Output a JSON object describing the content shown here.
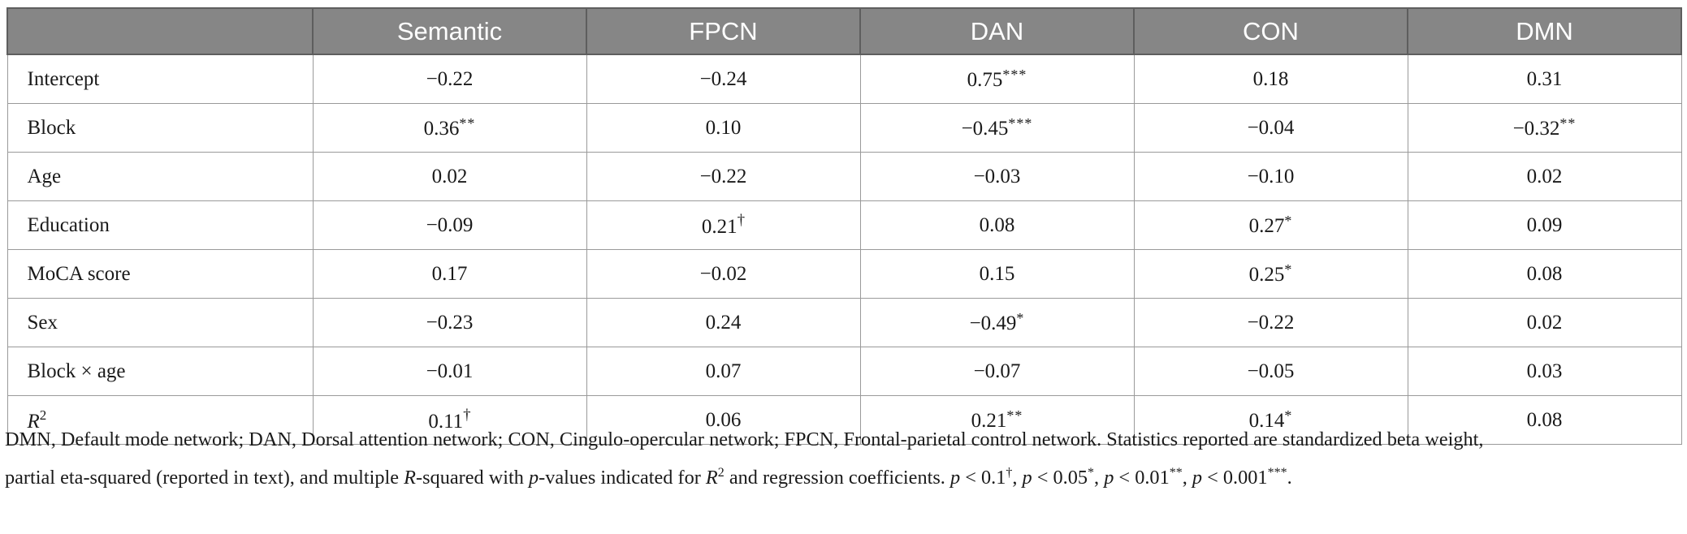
{
  "table": {
    "columns": [
      "",
      "Semantic",
      "FPCN",
      "DAN",
      "CON",
      "DMN"
    ],
    "rows": [
      {
        "label": "Intercept",
        "cells": [
          {
            "v": "−0.22",
            "m": ""
          },
          {
            "v": "−0.24",
            "m": ""
          },
          {
            "v": "0.75",
            "m": "***"
          },
          {
            "v": "0.18",
            "m": ""
          },
          {
            "v": "0.31",
            "m": ""
          }
        ]
      },
      {
        "label": "Block",
        "cells": [
          {
            "v": "0.36",
            "m": "**"
          },
          {
            "v": "0.10",
            "m": ""
          },
          {
            "v": "−0.45",
            "m": "***"
          },
          {
            "v": "−0.04",
            "m": ""
          },
          {
            "v": "−0.32",
            "m": "**"
          }
        ]
      },
      {
        "label": "Age",
        "cells": [
          {
            "v": "0.02",
            "m": ""
          },
          {
            "v": "−0.22",
            "m": ""
          },
          {
            "v": "−0.03",
            "m": ""
          },
          {
            "v": "−0.10",
            "m": ""
          },
          {
            "v": "0.02",
            "m": ""
          }
        ]
      },
      {
        "label": "Education",
        "cells": [
          {
            "v": "−0.09",
            "m": ""
          },
          {
            "v": "0.21",
            "m": "†"
          },
          {
            "v": "0.08",
            "m": ""
          },
          {
            "v": "0.27",
            "m": "*"
          },
          {
            "v": "0.09",
            "m": ""
          }
        ]
      },
      {
        "label": "MoCA score",
        "cells": [
          {
            "v": "0.17",
            "m": ""
          },
          {
            "v": "−0.02",
            "m": ""
          },
          {
            "v": "0.15",
            "m": ""
          },
          {
            "v": "0.25",
            "m": "*"
          },
          {
            "v": "0.08",
            "m": ""
          }
        ]
      },
      {
        "label": "Sex",
        "cells": [
          {
            "v": "−0.23",
            "m": ""
          },
          {
            "v": "0.24",
            "m": ""
          },
          {
            "v": "−0.49",
            "m": "*"
          },
          {
            "v": "−0.22",
            "m": ""
          },
          {
            "v": "0.02",
            "m": ""
          }
        ]
      },
      {
        "label": "Block × age",
        "cells": [
          {
            "v": "−0.01",
            "m": ""
          },
          {
            "v": "0.07",
            "m": ""
          },
          {
            "v": "−0.07",
            "m": ""
          },
          {
            "v": "−0.05",
            "m": ""
          },
          {
            "v": "0.03",
            "m": ""
          }
        ]
      },
      {
        "label": "R",
        "label_sup": "2",
        "cells": [
          {
            "v": "0.11",
            "m": "†"
          },
          {
            "v": "0.06",
            "m": ""
          },
          {
            "v": "0.21",
            "m": "**"
          },
          {
            "v": "0.14",
            "m": "*"
          },
          {
            "v": "0.08",
            "m": ""
          }
        ]
      }
    ]
  },
  "footnote": {
    "line1": "DMN, Default mode network; DAN, Dorsal attention network; CON, Cingulo-opercular network; FPCN, Frontal-parietal control network. Statistics reported are standardized beta weight,",
    "line2_a": "partial eta-squared (reported in text), and multiple ",
    "r": "R",
    "line2_b": "-squared with ",
    "p": "p",
    "line2_c": "-values indicated for ",
    "r2_base": "R",
    "r2_sup": "2",
    "line2_d": " and regression coefficients. ",
    "thresholds": [
      {
        "op": "p < 0.1",
        "mark": "†"
      },
      {
        "op": "p < 0.05",
        "mark": "*"
      },
      {
        "op": "p < 0.01",
        "mark": "**"
      },
      {
        "op": "p < 0.001",
        "mark": "***"
      }
    ]
  }
}
